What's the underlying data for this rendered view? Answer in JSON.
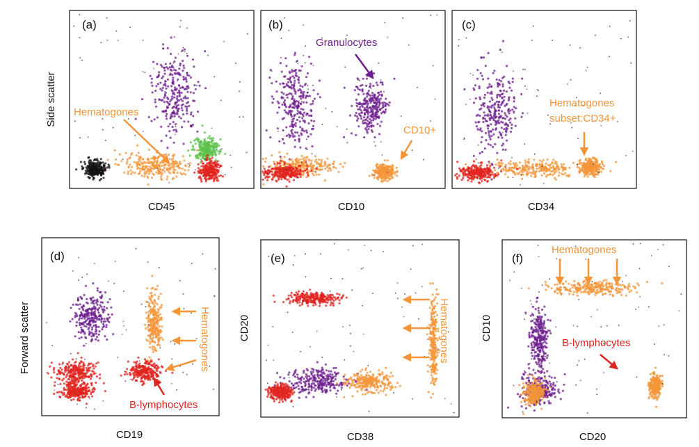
{
  "colors": {
    "purple": "#6e1f8f",
    "orange": "#f4953a",
    "red": "#e0241f",
    "green": "#5cc24a",
    "black": "#111111"
  },
  "chart_data": [
    {
      "type": "scatter",
      "panel_label": "(a)",
      "xlabel": "CD45",
      "ylabel": "Side scatter",
      "scale": "log",
      "annotations": [
        "Hematogones"
      ],
      "populations": [
        {
          "color": "purple",
          "cx": 0.57,
          "cy": 0.47,
          "sx": 0.11,
          "sy": 0.22
        },
        {
          "color": "orange",
          "cx": 0.47,
          "cy": 0.87,
          "sx": 0.18,
          "sy": 0.06
        },
        {
          "color": "green",
          "cx": 0.74,
          "cy": 0.78,
          "sx": 0.06,
          "sy": 0.06
        },
        {
          "color": "red",
          "cx": 0.76,
          "cy": 0.9,
          "sx": 0.05,
          "sy": 0.05
        },
        {
          "color": "black",
          "cx": 0.14,
          "cy": 0.89,
          "sx": 0.05,
          "sy": 0.04
        }
      ]
    },
    {
      "type": "scatter",
      "panel_label": "(b)",
      "xlabel": "CD10",
      "ylabel": "",
      "scale": "log",
      "annotations": [
        "Granulocytes",
        "CD10+"
      ],
      "populations": [
        {
          "color": "purple",
          "cx": 0.18,
          "cy": 0.52,
          "sx": 0.09,
          "sy": 0.22
        },
        {
          "color": "purple",
          "cx": 0.6,
          "cy": 0.55,
          "sx": 0.08,
          "sy": 0.14
        },
        {
          "color": "orange",
          "cx": 0.2,
          "cy": 0.88,
          "sx": 0.17,
          "sy": 0.05
        },
        {
          "color": "red",
          "cx": 0.12,
          "cy": 0.91,
          "sx": 0.1,
          "sy": 0.04
        },
        {
          "color": "orange",
          "cx": 0.67,
          "cy": 0.91,
          "sx": 0.05,
          "sy": 0.04
        }
      ]
    },
    {
      "type": "scatter",
      "panel_label": "(c)",
      "xlabel": "CD34",
      "ylabel": "",
      "scale": "log",
      "annotations": [
        "Hematogones",
        "subset:CD34+"
      ],
      "populations": [
        {
          "color": "purple",
          "cx": 0.24,
          "cy": 0.55,
          "sx": 0.11,
          "sy": 0.22
        },
        {
          "color": "orange",
          "cx": 0.45,
          "cy": 0.89,
          "sx": 0.25,
          "sy": 0.04
        },
        {
          "color": "red",
          "cx": 0.14,
          "cy": 0.91,
          "sx": 0.09,
          "sy": 0.04
        },
        {
          "color": "orange",
          "cx": 0.75,
          "cy": 0.88,
          "sx": 0.05,
          "sy": 0.04
        }
      ]
    },
    {
      "type": "scatter",
      "panel_label": "(d)",
      "xlabel": "CD19",
      "ylabel": "Forward scatter",
      "scale": "log",
      "annotations": [
        "Hematogones",
        "B-lymphocytes"
      ],
      "populations": [
        {
          "color": "purple",
          "cx": 0.28,
          "cy": 0.45,
          "sx": 0.09,
          "sy": 0.12
        },
        {
          "color": "orange",
          "cx": 0.63,
          "cy": 0.47,
          "sx": 0.04,
          "sy": 0.14
        },
        {
          "color": "red",
          "cx": 0.2,
          "cy": 0.76,
          "sx": 0.11,
          "sy": 0.06
        },
        {
          "color": "red",
          "cx": 0.58,
          "cy": 0.75,
          "sx": 0.08,
          "sy": 0.05
        },
        {
          "color": "red",
          "cx": 0.2,
          "cy": 0.86,
          "sx": 0.08,
          "sy": 0.04
        }
      ]
    },
    {
      "type": "scatter",
      "panel_label": "(e)",
      "xlabel": "CD38",
      "ylabel": "CD20",
      "scale": "linear",
      "annotations": [
        "Hematogones"
      ],
      "populations": [
        {
          "color": "red",
          "cx": 0.27,
          "cy": 0.33,
          "sx": 0.12,
          "sy": 0.03
        },
        {
          "color": "purple",
          "cx": 0.28,
          "cy": 0.8,
          "sx": 0.14,
          "sy": 0.07
        },
        {
          "color": "orange",
          "cx": 0.55,
          "cy": 0.8,
          "sx": 0.1,
          "sy": 0.05
        },
        {
          "color": "orange",
          "cx": 0.87,
          "cy": 0.58,
          "sx": 0.02,
          "sy": 0.22
        },
        {
          "color": "red",
          "cx": 0.1,
          "cy": 0.86,
          "sx": 0.05,
          "sy": 0.04
        }
      ]
    },
    {
      "type": "scatter",
      "panel_label": "(f)",
      "xlabel": "CD20",
      "ylabel": "CD10",
      "scale": "linear",
      "annotations": [
        "Hematogones",
        "B-lymphocytes"
      ],
      "populations": [
        {
          "color": "orange",
          "cx": 0.5,
          "cy": 0.27,
          "sx": 0.22,
          "sy": 0.035
        },
        {
          "color": "purple",
          "cx": 0.2,
          "cy": 0.55,
          "sx": 0.04,
          "sy": 0.17
        },
        {
          "color": "purple",
          "cx": 0.2,
          "cy": 0.85,
          "sx": 0.09,
          "sy": 0.08
        },
        {
          "color": "orange",
          "cx": 0.17,
          "cy": 0.86,
          "sx": 0.05,
          "sy": 0.06
        },
        {
          "color": "orange",
          "cx": 0.83,
          "cy": 0.82,
          "sx": 0.03,
          "sy": 0.06
        }
      ]
    }
  ]
}
